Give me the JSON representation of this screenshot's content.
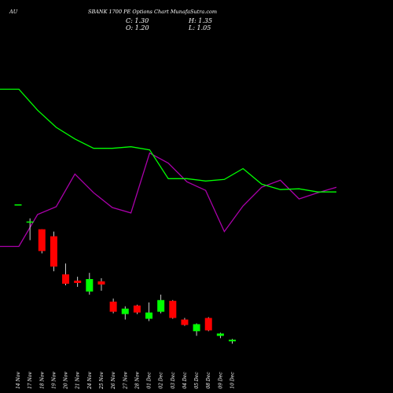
{
  "chart_data": {
    "type": "candlestick",
    "left_label": "AU",
    "title": "SBANK 1700 PE Options Chart MunafaSutra.com",
    "ohlc_readout": {
      "C": "C: 1.30",
      "H": "H: 1.35",
      "O": "O: 1.20",
      "L": "L: 1.05"
    },
    "x_tick_labels": [
      "14 Nov",
      "17 Nov",
      "18 Nov",
      "19 Nov",
      "20 Nov",
      "21 Nov",
      "24 Nov",
      "25 Nov",
      "26 Nov",
      "27 Nov",
      "28 Nov",
      "01 Dec",
      "02 Dec",
      "03 Dec",
      "04 Dec",
      "05 Dec",
      "08 Dec",
      "09 Dec",
      "10 Dec"
    ],
    "colors": {
      "background": "#000000",
      "up": "#00ff00",
      "down": "#ff0000",
      "green_line": "#00ff00",
      "magenta_line": "#aa00aa",
      "text": "#ffffff"
    },
    "candles": [
      {
        "date": "14 Nov",
        "open": 10.0,
        "high": 10.0,
        "low": 10.0,
        "close": 10.0
      },
      {
        "date": "17 Nov",
        "open": 8.85,
        "high": 9.1,
        "low": 7.7,
        "close": 8.9
      },
      {
        "date": "18 Nov",
        "open": 8.4,
        "high": 8.4,
        "low": 6.85,
        "close": 7.0
      },
      {
        "date": "19 Nov",
        "open": 7.95,
        "high": 8.25,
        "low": 5.7,
        "close": 6.0
      },
      {
        "date": "20 Nov",
        "open": 5.5,
        "high": 6.2,
        "low": 4.8,
        "close": 4.9
      },
      {
        "date": "21 Nov",
        "open": 5.1,
        "high": 5.35,
        "low": 4.7,
        "close": 4.95
      },
      {
        "date": "24 Nov",
        "open": 4.4,
        "high": 5.6,
        "low": 4.2,
        "close": 5.2
      },
      {
        "date": "25 Nov",
        "open": 5.05,
        "high": 5.25,
        "low": 4.45,
        "close": 4.85
      },
      {
        "date": "26 Nov",
        "open": 3.75,
        "high": 3.95,
        "low": 3.0,
        "close": 3.1
      },
      {
        "date": "27 Nov",
        "open": 2.95,
        "high": 3.45,
        "low": 2.6,
        "close": 3.3
      },
      {
        "date": "28 Nov",
        "open": 3.5,
        "high": 3.55,
        "low": 2.95,
        "close": 3.05
      },
      {
        "date": "01 Dec",
        "open": 2.65,
        "high": 3.7,
        "low": 2.5,
        "close": 3.05
      },
      {
        "date": "02 Dec",
        "open": 3.1,
        "high": 4.2,
        "low": 3.0,
        "close": 3.85
      },
      {
        "date": "03 Dec",
        "open": 3.8,
        "high": 3.85,
        "low": 2.65,
        "close": 2.7
      },
      {
        "date": "04 Dec",
        "open": 2.6,
        "high": 2.7,
        "low": 2.2,
        "close": 2.25
      },
      {
        "date": "05 Dec",
        "open": 1.85,
        "high": 2.35,
        "low": 1.55,
        "close": 2.3
      },
      {
        "date": "08 Dec",
        "open": 2.7,
        "high": 2.75,
        "low": 1.85,
        "close": 1.9
      },
      {
        "date": "09 Dec",
        "open": 1.55,
        "high": 1.75,
        "low": 1.4,
        "close": 1.7
      },
      {
        "date": "10 Dec",
        "open": 1.2,
        "high": 1.35,
        "low": 1.05,
        "close": 1.3
      }
    ],
    "green_line": [
      17.4,
      17.4,
      16.05,
      14.95,
      14.2,
      13.6,
      13.6,
      13.7,
      13.5,
      11.65,
      11.65,
      11.5,
      11.6,
      12.3,
      11.3,
      10.95,
      11.0,
      10.8,
      10.8
    ],
    "magenta_line": [
      7.3,
      7.3,
      9.35,
      9.85,
      11.95,
      10.75,
      9.8,
      9.45,
      13.3,
      12.65,
      11.45,
      10.9,
      8.25,
      9.9,
      11.1,
      11.55,
      10.35,
      10.75,
      11.1
    ],
    "yrange": [
      0,
      20
    ]
  }
}
